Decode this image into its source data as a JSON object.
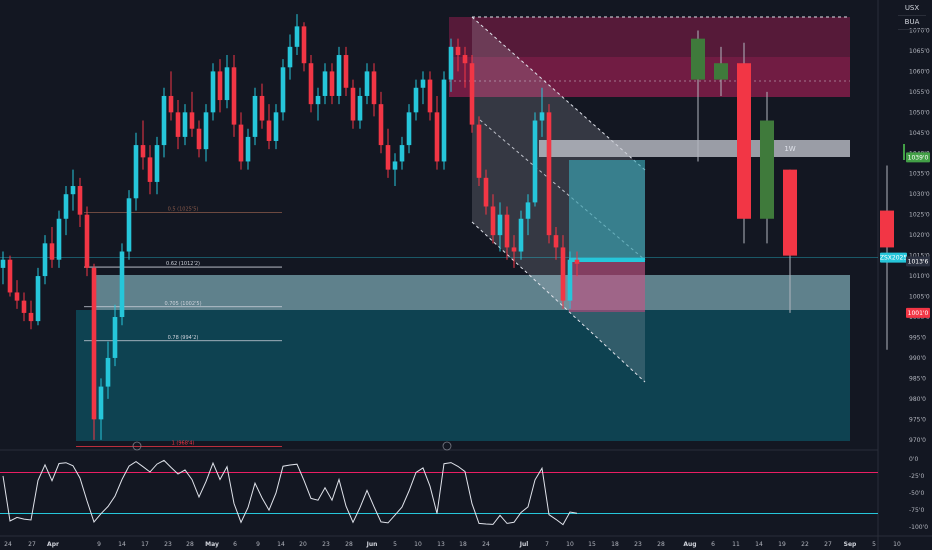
{
  "symbol_top": "USX",
  "symbol_bottom": "BUA",
  "chart_data": {
    "type": "candlestick",
    "price_axis": {
      "ticks": [
        "1070'0",
        "1065'0",
        "1060'0",
        "1055'0",
        "1050'0",
        "1045'0",
        "1040'0",
        "1035'0",
        "1030'0",
        "1025'0",
        "1020'0",
        "1015'0",
        "1010'0",
        "1005'0",
        "1000'0",
        "995'0",
        "990'0",
        "985'0",
        "980'0",
        "975'0",
        "970'0"
      ],
      "tick_values": [
        1070,
        1065,
        1060,
        1055,
        1050,
        1045,
        1040,
        1035,
        1030,
        1025,
        1020,
        1015,
        1010,
        1005,
        1000,
        995,
        990,
        985,
        980,
        975,
        970
      ],
      "ylim": [
        968,
        1075
      ]
    },
    "price_labels": [
      {
        "text": "1039'0",
        "value": 1039.0,
        "color": "#43a047"
      },
      {
        "text": "ZSX2025",
        "value": 1014.5,
        "color": "#26c6da"
      },
      {
        "text": "1013'6",
        "value": 1013.6,
        "color": "#2a3040"
      },
      {
        "text": "1001'0",
        "value": 1001.0,
        "color": "#f23645"
      }
    ],
    "x_axis": {
      "labels": [
        "24",
        "27",
        "Apr",
        "9",
        "14",
        "17",
        "23",
        "28",
        "May",
        "6",
        "9",
        "14",
        "20",
        "23",
        "28",
        "Jun",
        "5",
        "10",
        "13",
        "18",
        "24",
        "Jul",
        "7",
        "10",
        "15",
        "18",
        "23",
        "28",
        "Aug",
        "6",
        "11",
        "14",
        "19",
        "22",
        "27",
        "Sep",
        "5",
        "10"
      ],
      "positions": [
        8,
        32,
        53,
        99,
        122,
        145,
        168,
        190,
        212,
        235,
        258,
        281,
        303,
        326,
        349,
        372,
        395,
        418,
        441,
        463,
        486,
        524,
        547,
        570,
        592,
        615,
        638,
        661,
        690,
        713,
        736,
        759,
        782,
        805,
        828,
        850,
        874,
        897
      ]
    },
    "fib_levels": [
      {
        "label": "0.5 (1025'5)",
        "value": 1025.5,
        "color": "#8a5a4a"
      },
      {
        "label": "0.62 (1012'2)",
        "value": 1012.2,
        "color": "#cfd3dc"
      },
      {
        "label": "0.705 (1002'5)",
        "value": 1002.5,
        "color": "#cfd3dc"
      },
      {
        "label": "0.78 (994'2)",
        "value": 994.2,
        "color": "#cfd3dc"
      },
      {
        "label": "1 (968'4)",
        "value": 968.4,
        "color": "#f23645"
      }
    ],
    "annotations": [
      {
        "text": "1W"
      }
    ],
    "oscillator": {
      "ticks": [
        "0'0",
        "-25'0",
        "-50'0",
        "-75'0",
        "-100'0"
      ],
      "tick_values": [
        0,
        -25,
        -50,
        -75,
        -100
      ],
      "upper_line": -20,
      "lower_line": -80
    },
    "series": [
      {
        "name": "daily",
        "colors": {
          "up": "#26c6da",
          "down": "#f23645"
        },
        "ohlc": [
          [
            1012,
            1016,
            1008,
            1014
          ],
          [
            1014,
            1015,
            1005,
            1006
          ],
          [
            1006,
            1009,
            1002,
            1004
          ],
          [
            1004,
            1006,
            999,
            1001
          ],
          [
            1001,
            1004,
            997,
            999
          ],
          [
            999,
            1012,
            998,
            1010
          ],
          [
            1010,
            1020,
            1008,
            1018
          ],
          [
            1018,
            1022,
            1012,
            1014
          ],
          [
            1014,
            1026,
            1012,
            1024
          ],
          [
            1024,
            1032,
            1020,
            1030
          ],
          [
            1030,
            1036,
            1026,
            1032
          ],
          [
            1032,
            1034,
            1022,
            1025
          ],
          [
            1025,
            1027,
            1010,
            1012
          ],
          [
            1012,
            1013,
            970,
            975
          ],
          [
            975,
            985,
            970,
            983
          ],
          [
            983,
            994,
            980,
            990
          ],
          [
            990,
            1003,
            988,
            1000
          ],
          [
            1000,
            1018,
            998,
            1016
          ],
          [
            1016,
            1031,
            1014,
            1029
          ],
          [
            1029,
            1045,
            1026,
            1042
          ],
          [
            1042,
            1048,
            1036,
            1039
          ],
          [
            1039,
            1042,
            1030,
            1033
          ],
          [
            1033,
            1044,
            1030,
            1042
          ],
          [
            1042,
            1056,
            1039,
            1054
          ],
          [
            1054,
            1060,
            1048,
            1050
          ],
          [
            1050,
            1053,
            1041,
            1044
          ],
          [
            1044,
            1052,
            1042,
            1050
          ],
          [
            1050,
            1055,
            1044,
            1046
          ],
          [
            1046,
            1048,
            1039,
            1041
          ],
          [
            1041,
            1052,
            1038,
            1050
          ],
          [
            1050,
            1062,
            1048,
            1060
          ],
          [
            1060,
            1063,
            1050,
            1053
          ],
          [
            1053,
            1064,
            1051,
            1061
          ],
          [
            1061,
            1064,
            1044,
            1047
          ],
          [
            1047,
            1050,
            1036,
            1038
          ],
          [
            1038,
            1046,
            1036,
            1044
          ],
          [
            1044,
            1056,
            1042,
            1054
          ],
          [
            1054,
            1057,
            1046,
            1048
          ],
          [
            1048,
            1052,
            1041,
            1043
          ],
          [
            1043,
            1052,
            1041,
            1050
          ],
          [
            1050,
            1063,
            1048,
            1061
          ],
          [
            1061,
            1069,
            1058,
            1066
          ],
          [
            1066,
            1074,
            1064,
            1071
          ],
          [
            1071,
            1072,
            1060,
            1062
          ],
          [
            1062,
            1064,
            1050,
            1052
          ],
          [
            1052,
            1056,
            1048,
            1054
          ],
          [
            1054,
            1062,
            1052,
            1060
          ],
          [
            1060,
            1062,
            1052,
            1054
          ],
          [
            1054,
            1066,
            1052,
            1064
          ],
          [
            1064,
            1066,
            1054,
            1056
          ],
          [
            1056,
            1058,
            1046,
            1048
          ],
          [
            1048,
            1056,
            1046,
            1054
          ],
          [
            1054,
            1062,
            1052,
            1060
          ],
          [
            1060,
            1062,
            1049,
            1052
          ],
          [
            1052,
            1055,
            1040,
            1042
          ],
          [
            1042,
            1046,
            1034,
            1036
          ],
          [
            1036,
            1040,
            1032,
            1038
          ],
          [
            1038,
            1044,
            1036,
            1042
          ],
          [
            1042,
            1052,
            1040,
            1050
          ],
          [
            1050,
            1058,
            1048,
            1056
          ],
          [
            1056,
            1060,
            1052,
            1058
          ],
          [
            1058,
            1060,
            1048,
            1050
          ],
          [
            1050,
            1054,
            1036,
            1038
          ],
          [
            1038,
            1060,
            1036,
            1058
          ],
          [
            1058,
            1068,
            1055,
            1066
          ],
          [
            1066,
            1068,
            1060,
            1064
          ],
          [
            1064,
            1066,
            1056,
            1062
          ],
          [
            1062,
            1064,
            1045,
            1047
          ],
          [
            1047,
            1049,
            1032,
            1034
          ],
          [
            1034,
            1036,
            1025,
            1027
          ],
          [
            1027,
            1030,
            1018,
            1020
          ],
          [
            1020,
            1028,
            1016,
            1025
          ],
          [
            1025,
            1027,
            1014,
            1017
          ],
          [
            1017,
            1020,
            1012,
            1016
          ],
          [
            1016,
            1026,
            1014,
            1024
          ],
          [
            1024,
            1030,
            1020,
            1028
          ],
          [
            1028,
            1050,
            1027,
            1048
          ],
          [
            1048,
            1056,
            1044,
            1050
          ],
          [
            1050,
            1052,
            1018,
            1020
          ],
          [
            1020,
            1022,
            1014,
            1017
          ],
          [
            1017,
            1020,
            1002,
            1004
          ],
          [
            1004,
            1016,
            1002,
            1014
          ],
          [
            1014,
            1016,
            1010,
            1013
          ]
        ]
      },
      {
        "name": "weekly",
        "colors": {
          "up": "#3f7a3b",
          "down": "#f23645"
        },
        "ohlc": [
          [
            1058,
            1070,
            1038,
            1068
          ],
          [
            1058,
            1066,
            1054,
            1062
          ],
          [
            1062,
            1067,
            1018,
            1024
          ],
          [
            1024,
            1055,
            1018,
            1048
          ],
          [
            1036,
            1036,
            1001,
            1015
          ],
          [
            1026,
            1037,
            992,
            1017
          ]
        ]
      }
    ]
  }
}
